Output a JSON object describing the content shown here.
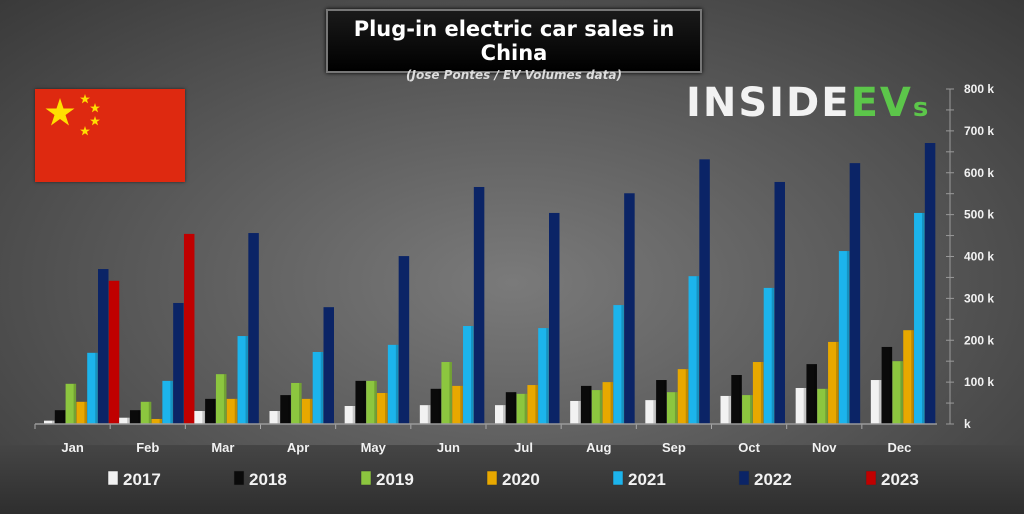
{
  "header": {
    "title": "Plug-in electric car sales in China",
    "subtitle": "(Jose Pontes / EV Volumes data)"
  },
  "logo": {
    "part1": "INSIDE",
    "part2": "EV",
    "part3": "s"
  },
  "flag": "china-flag",
  "chart_data": {
    "type": "bar",
    "title": "Plug-in electric car sales in China",
    "subtitle": "(Jose Pontes / EV Volumes data)",
    "xlabel": "",
    "ylabel": "",
    "ylim": [
      0,
      800
    ],
    "y_unit": "k",
    "y_ticks": [
      0,
      100,
      200,
      300,
      400,
      500,
      600,
      700,
      800
    ],
    "y_tick_labels": [
      "k",
      "100 k",
      "200 k",
      "300 k",
      "400 k",
      "500 k",
      "600 k",
      "700 k",
      "800 k"
    ],
    "y_axis_position": "right",
    "grid": false,
    "legend_position": "bottom",
    "categories": [
      "Jan",
      "Feb",
      "Mar",
      "Apr",
      "May",
      "Jun",
      "Jul",
      "Aug",
      "Sep",
      "Oct",
      "Nov",
      "Dec"
    ],
    "series": [
      {
        "name": "2017",
        "color": "#f2f2f2",
        "values": [
          8,
          15,
          31,
          31,
          43,
          45,
          45,
          55,
          57,
          67,
          86,
          105
        ]
      },
      {
        "name": "2018",
        "color": "#0a0a0a",
        "values": [
          33,
          33,
          60,
          69,
          103,
          84,
          76,
          91,
          105,
          117,
          143,
          184
        ]
      },
      {
        "name": "2019",
        "color": "#8cc63f",
        "values": [
          96,
          53,
          119,
          98,
          103,
          148,
          72,
          81,
          76,
          69,
          84,
          150
        ]
      },
      {
        "name": "2020",
        "color": "#e8a800",
        "values": [
          53,
          12,
          60,
          60,
          74,
          91,
          93,
          100,
          131,
          148,
          196,
          224
        ]
      },
      {
        "name": "2021",
        "color": "#1cb4ec",
        "values": [
          170,
          103,
          210,
          172,
          189,
          234,
          229,
          284,
          353,
          325,
          413,
          504
        ]
      },
      {
        "name": "2022",
        "color": "#0b2466",
        "values": [
          370,
          289,
          456,
          279,
          401,
          566,
          504,
          551,
          632,
          578,
          623,
          671
        ]
      },
      {
        "name": "2023",
        "color": "#c00000",
        "values": [
          342,
          454,
          null,
          null,
          null,
          null,
          null,
          null,
          null,
          null,
          null,
          null
        ]
      }
    ]
  }
}
